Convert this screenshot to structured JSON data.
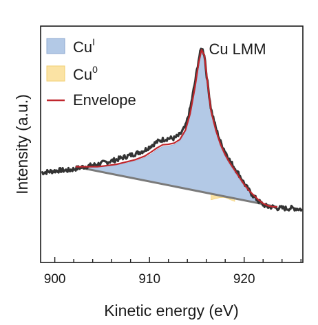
{
  "chart_data": {
    "type": "line",
    "title": "",
    "xlabel": "Kinetic energy (eV)",
    "ylabel": "Intensity (a.u.)",
    "xlim": [
      898.5,
      926.2
    ],
    "ylim": [
      0,
      1
    ],
    "x_ticks": [
      900,
      910,
      920
    ],
    "grid": false,
    "annotation": "Cu LMM",
    "legend": {
      "placement": "top-left",
      "entries": [
        {
          "label_main": "Cu",
          "label_sup": "I",
          "color": "#b3c9e6",
          "edge": "#8faad0",
          "kind": "patch"
        },
        {
          "label_main": "Cu",
          "label_sup": "0",
          "color": "#fbe3a4",
          "edge": "#f2cf72",
          "kind": "patch"
        },
        {
          "label_main": "Envelope",
          "label_sup": "",
          "color": "#c0272d",
          "kind": "line"
        }
      ]
    },
    "background": {
      "color": "#7a7a7a",
      "x": [
        902.2,
        923.5
      ],
      "y": [
        0.405,
        0.235
      ]
    },
    "series": [
      {
        "name": "data",
        "color": "#333333",
        "x": [
          898.6,
          899.5,
          900.5,
          901.5,
          902.5,
          903.5,
          904.5,
          905.5,
          906.5,
          907.5,
          908.5,
          909.5,
          910.2,
          910.8,
          911.4,
          912.0,
          912.6,
          913.2,
          913.8,
          914.3,
          914.8,
          915.2,
          915.5,
          915.8,
          916.1,
          916.5,
          917.0,
          917.5,
          918.0,
          918.5,
          919.0,
          919.5,
          920.0,
          920.5,
          921.0,
          921.5,
          922.0,
          922.5,
          923.0,
          923.5,
          924.0,
          924.5,
          925.0,
          925.5,
          926.1
        ],
        "y": [
          0.38,
          0.385,
          0.39,
          0.39,
          0.4,
          0.408,
          0.415,
          0.425,
          0.435,
          0.448,
          0.46,
          0.475,
          0.495,
          0.51,
          0.52,
          0.525,
          0.525,
          0.54,
          0.575,
          0.65,
          0.76,
          0.86,
          0.91,
          0.88,
          0.77,
          0.65,
          0.57,
          0.51,
          0.47,
          0.43,
          0.4,
          0.37,
          0.335,
          0.305,
          0.28,
          0.26,
          0.245,
          0.235,
          0.235,
          0.23,
          0.23,
          0.228,
          0.23,
          0.228,
          0.225
        ]
      },
      {
        "name": "envelope",
        "color": "#c0272d",
        "x": [
          902.2,
          903.5,
          904.5,
          905.5,
          906.5,
          907.5,
          908.5,
          909.5,
          910.2,
          910.8,
          911.4,
          912.0,
          912.6,
          913.2,
          913.8,
          914.3,
          914.8,
          915.2,
          915.5,
          915.8,
          916.1,
          916.5,
          917.0,
          917.5,
          918.0,
          918.5,
          919.0,
          919.5,
          920.0,
          920.5,
          921.0,
          921.5,
          922.0,
          922.5,
          923.0,
          923.5
        ],
        "y": [
          0.405,
          0.405,
          0.405,
          0.41,
          0.415,
          0.425,
          0.435,
          0.45,
          0.468,
          0.485,
          0.498,
          0.5,
          0.505,
          0.52,
          0.56,
          0.63,
          0.74,
          0.845,
          0.9,
          0.875,
          0.77,
          0.64,
          0.56,
          0.5,
          0.455,
          0.42,
          0.39,
          0.36,
          0.33,
          0.305,
          0.285,
          0.265,
          0.25,
          0.24,
          0.236,
          0.235
        ]
      },
      {
        "name": "Cu(I) component",
        "color": "#b3c9e6",
        "x": [
          902.2,
          903.5,
          904.5,
          905.5,
          906.5,
          907.5,
          908.5,
          909.5,
          910.2,
          910.8,
          911.4,
          912.0,
          912.6,
          913.2,
          913.8,
          914.3,
          914.8,
          915.2,
          915.5,
          915.8,
          916.1,
          916.5,
          917.0,
          917.5,
          918.0,
          918.5,
          919.0,
          919.5,
          920.0,
          920.5,
          921.0,
          921.5,
          922.0,
          922.5,
          923.0,
          923.5
        ],
        "y": [
          0.405,
          0.403,
          0.403,
          0.407,
          0.412,
          0.42,
          0.43,
          0.444,
          0.46,
          0.478,
          0.49,
          0.493,
          0.498,
          0.514,
          0.553,
          0.622,
          0.733,
          0.838,
          0.893,
          0.868,
          0.763,
          0.633,
          0.552,
          0.492,
          0.447,
          0.413,
          0.382,
          0.352,
          0.323,
          0.298,
          0.279,
          0.26,
          0.246,
          0.237,
          0.235,
          0.235
        ]
      },
      {
        "name": "Cu(0) component",
        "color": "#fbe3a4",
        "x": [
          916.5,
          917.0,
          917.5,
          918.0,
          918.5,
          919.0
        ],
        "y": [
          0.265,
          0.27,
          0.275,
          0.274,
          0.266,
          0.258
        ]
      }
    ]
  }
}
